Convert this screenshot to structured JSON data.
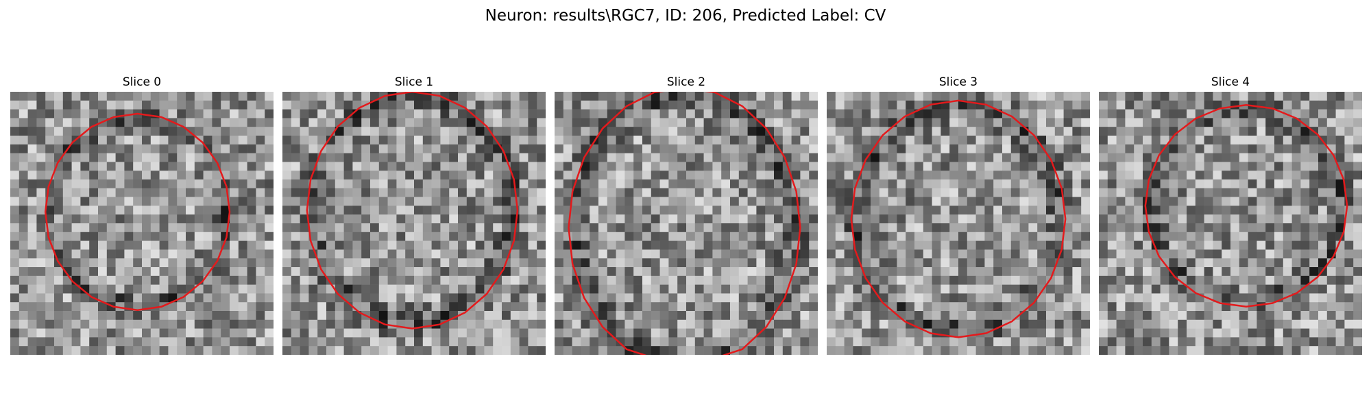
{
  "figure": {
    "title": "Neuron: results\\RGC7, ID: 206, Predicted Label: CV"
  },
  "panels": [
    {
      "title": "Slice 0"
    },
    {
      "title": "Slice 1"
    },
    {
      "title": "Slice 2"
    },
    {
      "title": "Slice 3"
    },
    {
      "title": "Slice 4"
    }
  ],
  "colors": {
    "contour": "#e41a1c",
    "background": "#ffffff"
  },
  "image": {
    "colormap": "grayscale",
    "grid_size": 30
  }
}
